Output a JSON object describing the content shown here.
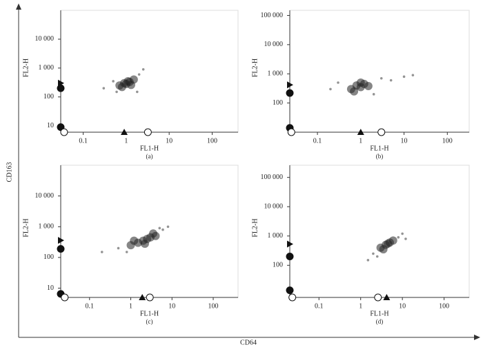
{
  "x_label": "CD64",
  "y_label": "CD163",
  "chart_data": [
    {
      "type": "scatter",
      "subtitle": "(a)",
      "x_label": "FL1-H",
      "y_label": "FL2-H",
      "log_scale": true,
      "xlim": [
        0.03,
        400
      ],
      "ylim": [
        6,
        100000
      ],
      "xticks": [
        0.1,
        1,
        10,
        100
      ],
      "yticks": [
        10,
        100,
        {
          "value": 1000,
          "label": "1 000"
        },
        {
          "value": 10000,
          "label": "10 000"
        }
      ],
      "series": [
        {
          "color": "#222222",
          "x": [
            0.7,
            0.9,
            1.0,
            1.2,
            1.5,
            0.8,
            1.1,
            1.3
          ],
          "values": [
            250,
            300,
            280,
            330,
            400,
            220,
            350,
            260
          ]
        },
        {
          "color": "#888888",
          "x": [
            0.3,
            0.5,
            2,
            2.5,
            0.6,
            1.8
          ],
          "values": [
            200,
            350,
            600,
            900,
            150,
            150
          ]
        }
      ],
      "y_markers": [
        {
          "shape": "triangle-right",
          "value": 300
        },
        {
          "shape": "circle-filled",
          "value": 200
        },
        {
          "shape": "circle-filled",
          "value": 9
        }
      ],
      "x_markers": [
        {
          "shape": "circle-open",
          "value": 0.036
        },
        {
          "shape": "triangle-up",
          "value": 0.9
        },
        {
          "shape": "circle-open",
          "value": 3.2
        }
      ]
    },
    {
      "type": "scatter",
      "subtitle": "(b)",
      "x_label": "FL1-H",
      "y_label": "FL2-H",
      "log_scale": true,
      "xlim": [
        0.023,
        320
      ],
      "ylim": [
        10,
        150000
      ],
      "xticks": [
        0.1,
        1,
        10,
        100
      ],
      "yticks": [
        100,
        {
          "value": 1000,
          "label": "1 000"
        },
        {
          "value": 10000,
          "label": "10 000"
        },
        {
          "value": 100000,
          "label": "100 000"
        }
      ],
      "series": [
        {
          "color": "#222222",
          "x": [
            0.6,
            0.8,
            1,
            1.2,
            1.5,
            0.7,
            1.0
          ],
          "values": [
            300,
            400,
            350,
            450,
            380,
            250,
            500
          ]
        },
        {
          "color": "#888888",
          "x": [
            0.2,
            0.3,
            3,
            5,
            10,
            16,
            2
          ],
          "values": [
            300,
            500,
            700,
            600,
            800,
            900,
            200
          ]
        }
      ],
      "y_markers": [
        {
          "shape": "triangle-right",
          "value": 420
        },
        {
          "shape": "circle-filled",
          "value": 220
        },
        {
          "shape": "circle-filled",
          "value": 14
        }
      ],
      "x_markers": [
        {
          "shape": "circle-open",
          "value": 0.025
        },
        {
          "shape": "triangle-up",
          "value": 1
        },
        {
          "shape": "circle-open",
          "value": 3
        }
      ]
    },
    {
      "type": "scatter",
      "subtitle": "(c)",
      "x_label": "FL1-H",
      "y_label": "FL2-H",
      "log_scale": true,
      "xlim": [
        0.02,
        400
      ],
      "ylim": [
        5,
        100000
      ],
      "xticks": [
        0.1,
        1,
        10,
        100
      ],
      "yticks": [
        10,
        100,
        {
          "value": 1000,
          "label": "1 000"
        },
        {
          "value": 10000,
          "label": "10 000"
        }
      ],
      "series": [
        {
          "color": "#222222",
          "x": [
            1,
            1.5,
            2,
            2.5,
            3,
            4,
            1.2,
            2.2,
            3.5
          ],
          "values": [
            250,
            300,
            350,
            400,
            450,
            500,
            350,
            280,
            600
          ]
        },
        {
          "color": "#888888",
          "x": [
            0.2,
            0.5,
            6,
            8,
            0.8,
            5
          ],
          "values": [
            150,
            200,
            800,
            1000,
            150,
            900
          ]
        }
      ],
      "y_markers": [
        {
          "shape": "triangle-right",
          "value": 360
        },
        {
          "shape": "circle-filled",
          "value": 190
        },
        {
          "shape": "circle-filled",
          "value": 6.5
        }
      ],
      "x_markers": [
        {
          "shape": "circle-open",
          "value": 0.025
        },
        {
          "shape": "triangle-up",
          "value": 1.9
        },
        {
          "shape": "circle-open",
          "value": 2.9
        }
      ]
    },
    {
      "type": "scatter",
      "subtitle": "(d)",
      "x_label": "FL1-H",
      "y_label": "FL2-H",
      "log_scale": true,
      "xlim": [
        0.02,
        400
      ],
      "ylim": [
        8,
        260000
      ],
      "xticks": [
        0.1,
        1,
        10,
        100
      ],
      "yticks": [
        100,
        {
          "value": 1000,
          "label": "1 000"
        },
        {
          "value": 10000,
          "label": "10 000"
        },
        {
          "value": 100000,
          "label": "100 000"
        }
      ],
      "series": [
        {
          "color": "#222222",
          "x": [
            3,
            4,
            5,
            6,
            3.5,
            4.5
          ],
          "values": [
            400,
            500,
            600,
            700,
            350,
            550
          ]
        },
        {
          "color": "#888888",
          "x": [
            1.5,
            2,
            8,
            10,
            2.5,
            12
          ],
          "values": [
            150,
            250,
            900,
            1200,
            200,
            800
          ]
        }
      ],
      "y_markers": [
        {
          "shape": "triangle-right",
          "value": 530
        },
        {
          "shape": "circle-filled",
          "value": 200
        },
        {
          "shape": "circle-filled",
          "value": 14
        }
      ],
      "x_markers": [
        {
          "shape": "circle-open",
          "value": 0.023
        },
        {
          "shape": "circle-open",
          "value": 2.6
        },
        {
          "shape": "triangle-up",
          "value": 4.2
        }
      ]
    }
  ]
}
